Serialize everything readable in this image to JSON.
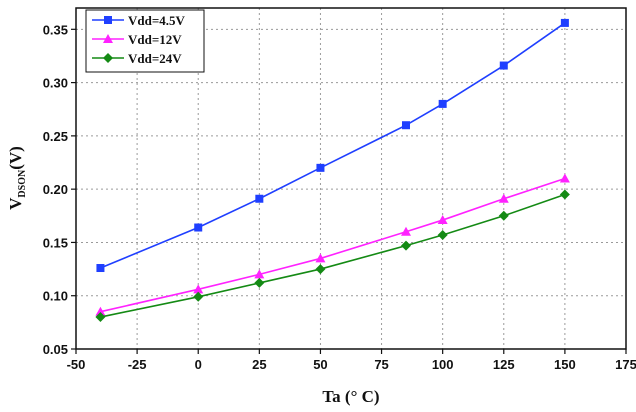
{
  "chart_data": {
    "type": "line",
    "xlabel": "Ta (° C)",
    "ylabel": {
      "main": "V",
      "sub": "DSON",
      "unit": "(V)"
    },
    "xlim": [
      -50,
      175
    ],
    "ylim": [
      0.05,
      0.37
    ],
    "xticks": [
      -50,
      -25,
      0,
      25,
      50,
      75,
      100,
      125,
      150,
      175
    ],
    "xtick_labels": [
      "-50",
      "-25",
      "0",
      "25",
      "50",
      "75",
      "100",
      "125",
      "150",
      "175"
    ],
    "yticks": [
      0.05,
      0.1,
      0.15,
      0.2,
      0.25,
      0.3,
      0.35
    ],
    "ytick_labels": [
      "0.05",
      "0.10",
      "0.15",
      "0.20",
      "0.25",
      "0.30",
      "0.35"
    ],
    "grid": true,
    "legend_position": "top-left",
    "series": [
      {
        "name": "Vdd=4.5V",
        "color": "#1f3fff",
        "marker": "square",
        "x": [
          -40,
          0,
          25,
          50,
          85,
          100,
          125,
          150
        ],
        "y": [
          0.126,
          0.164,
          0.191,
          0.22,
          0.26,
          0.28,
          0.316,
          0.356
        ]
      },
      {
        "name": "Vdd=12V",
        "color": "#ff22ff",
        "marker": "triangle",
        "x": [
          -40,
          0,
          25,
          50,
          85,
          100,
          125,
          150
        ],
        "y": [
          0.085,
          0.106,
          0.12,
          0.135,
          0.16,
          0.171,
          0.191,
          0.21
        ]
      },
      {
        "name": "Vdd=24V",
        "color": "#148a14",
        "marker": "diamond",
        "x": [
          -40,
          0,
          25,
          50,
          85,
          100,
          125,
          150
        ],
        "y": [
          0.08,
          0.099,
          0.112,
          0.125,
          0.147,
          0.157,
          0.175,
          0.195
        ]
      }
    ]
  }
}
